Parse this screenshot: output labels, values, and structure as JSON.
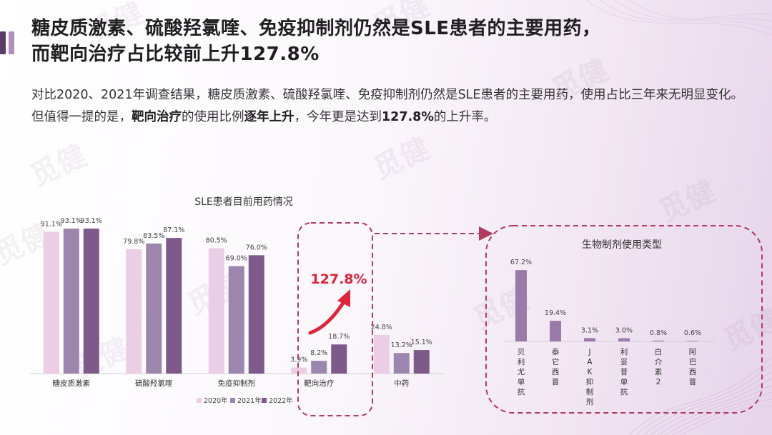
{
  "header": {
    "title_line1": "糖皮质激素、硫酸羟氯喹、免疫抑制剂仍然是SLE患者的主要用药，",
    "title_line2": "而靶向治疗占比较前上升127.8%"
  },
  "description": {
    "part1": "对比2020、2021年调查结果，糖皮质激素、硫酸羟氯喹、免疫抑制剂仍然是SLE患者的主要用药，使用占比三年来无明显变化。但值得一提的是，",
    "bold1": "靶向治疗",
    "part2": "的使用比例",
    "bold2": "逐年上升",
    "part3": "，今年更是达到",
    "bold3": "127.8%",
    "part4": "的上升率。"
  },
  "watermark": "觅健",
  "highlight": {
    "label": "127.8%",
    "color": "#e0243a"
  },
  "colors": {
    "accent1": "#5a3a66",
    "accent2": "#b08fbe",
    "s2020": "#ebcde6",
    "s2021": "#9c86ad",
    "s2022": "#7d5a8a",
    "bio": "#9a7aa8",
    "dashed": "#b03a60"
  },
  "chart_data": [
    {
      "type": "bar",
      "title": "SLE患者目前用药情况",
      "categories": [
        "糖皮质激素",
        "硫酸羟氯喹",
        "免疫抑制剂",
        "靶向治疗",
        "中药"
      ],
      "series": [
        {
          "name": "2020年",
          "values": [
            91.1,
            79.8,
            80.5,
            3.9,
            24.8
          ],
          "labels": [
            "91.1%",
            "79.8%",
            "80.5%",
            "3.9%",
            "24.8%"
          ]
        },
        {
          "name": "2021年",
          "values": [
            93.1,
            83.5,
            69.0,
            8.2,
            13.2
          ],
          "labels": [
            "93.1%",
            "83.5%",
            "69.0%",
            "8.2%",
            "13.2%"
          ]
        },
        {
          "name": "2022年",
          "values": [
            93.1,
            87.1,
            76.0,
            18.7,
            15.1
          ],
          "labels": [
            "93.1%",
            "87.1%",
            "76.0%",
            "18.7%",
            "15.1%"
          ]
        }
      ],
      "ylim": [
        0,
        100
      ],
      "legend": "bottom-right",
      "grid": false
    },
    {
      "type": "bar",
      "title": "生物制剂使用类型",
      "categories": [
        "贝利尤单抗",
        "泰它西普",
        "JAK抑制剂",
        "利妥昔单抗",
        "白介素2",
        "阿巴西普"
      ],
      "values": [
        67.2,
        19.4,
        3.1,
        3.0,
        0.8,
        0.6
      ],
      "labels": [
        "67.2%",
        "19.4%",
        "3.1%",
        "3.0%",
        "0.8%",
        "0.6%"
      ],
      "ylim": [
        0,
        70
      ],
      "grid": false
    }
  ]
}
